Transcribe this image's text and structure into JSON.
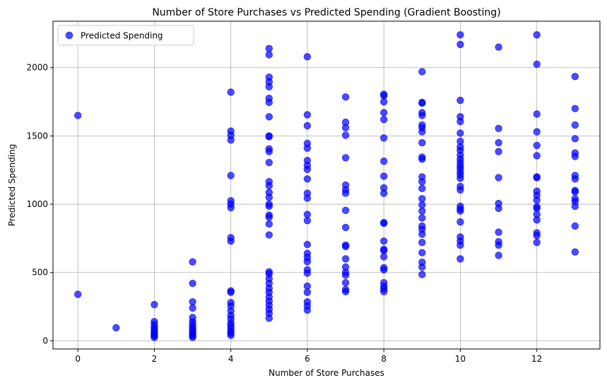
{
  "chart_data": {
    "type": "scatter",
    "title": "Number of Store Purchases vs Predicted Spending (Gradient Boosting)",
    "xlabel": "Number of Store Purchases",
    "ylabel": "Predicted Spending",
    "xlim": [
      -0.65,
      13.65
    ],
    "ylim": [
      -60,
      2340
    ],
    "xticks": [
      0,
      2,
      4,
      6,
      8,
      10,
      12
    ],
    "yticks": [
      0,
      500,
      1000,
      1500,
      2000
    ],
    "grid": true,
    "legend_position": "top-left",
    "series": [
      {
        "name": "Predicted Spending",
        "color": "#0000ff",
        "marker": "circle",
        "alpha": 0.7,
        "points": [
          [
            0,
            1650
          ],
          [
            0,
            340
          ],
          [
            1,
            95
          ],
          [
            2,
            265
          ],
          [
            2,
            140
          ],
          [
            2,
            120
          ],
          [
            2,
            100
          ],
          [
            2,
            85
          ],
          [
            2,
            70
          ],
          [
            2,
            55
          ],
          [
            2,
            45
          ],
          [
            2,
            35
          ],
          [
            2,
            25
          ],
          [
            3,
            578
          ],
          [
            3,
            420
          ],
          [
            3,
            285
          ],
          [
            3,
            240
          ],
          [
            3,
            170
          ],
          [
            3,
            140
          ],
          [
            3,
            120
          ],
          [
            3,
            100
          ],
          [
            3,
            85
          ],
          [
            3,
            70
          ],
          [
            3,
            55
          ],
          [
            3,
            45
          ],
          [
            3,
            35
          ],
          [
            3,
            25
          ],
          [
            4,
            1820
          ],
          [
            4,
            1535
          ],
          [
            4,
            1505
          ],
          [
            4,
            1470
          ],
          [
            4,
            1210
          ],
          [
            4,
            1025
          ],
          [
            4,
            1000
          ],
          [
            4,
            975
          ],
          [
            4,
            755
          ],
          [
            4,
            730
          ],
          [
            4,
            365
          ],
          [
            4,
            355
          ],
          [
            4,
            280
          ],
          [
            4,
            255
          ],
          [
            4,
            220
          ],
          [
            4,
            185
          ],
          [
            4,
            160
          ],
          [
            4,
            130
          ],
          [
            4,
            110
          ],
          [
            4,
            90
          ],
          [
            4,
            70
          ],
          [
            4,
            55
          ],
          [
            4,
            40
          ],
          [
            5,
            2140
          ],
          [
            5,
            2095
          ],
          [
            5,
            1930
          ],
          [
            5,
            1895
          ],
          [
            5,
            1860
          ],
          [
            5,
            1775
          ],
          [
            5,
            1745
          ],
          [
            5,
            1640
          ],
          [
            5,
            1500
          ],
          [
            5,
            1495
          ],
          [
            5,
            1405
          ],
          [
            5,
            1385
          ],
          [
            5,
            1305
          ],
          [
            5,
            1165
          ],
          [
            5,
            1135
          ],
          [
            5,
            1085
          ],
          [
            5,
            1050
          ],
          [
            5,
            1000
          ],
          [
            5,
            985
          ],
          [
            5,
            920
          ],
          [
            5,
            905
          ],
          [
            5,
            855
          ],
          [
            5,
            775
          ],
          [
            5,
            505
          ],
          [
            5,
            490
          ],
          [
            5,
            455
          ],
          [
            5,
            420
          ],
          [
            5,
            385
          ],
          [
            5,
            355
          ],
          [
            5,
            320
          ],
          [
            5,
            290
          ],
          [
            5,
            260
          ],
          [
            5,
            230
          ],
          [
            5,
            200
          ],
          [
            5,
            165
          ],
          [
            6,
            2080
          ],
          [
            6,
            1655
          ],
          [
            6,
            1575
          ],
          [
            6,
            1445
          ],
          [
            6,
            1410
          ],
          [
            6,
            1320
          ],
          [
            6,
            1285
          ],
          [
            6,
            1255
          ],
          [
            6,
            1185
          ],
          [
            6,
            1080
          ],
          [
            6,
            1045
          ],
          [
            6,
            925
          ],
          [
            6,
            880
          ],
          [
            6,
            705
          ],
          [
            6,
            640
          ],
          [
            6,
            610
          ],
          [
            6,
            580
          ],
          [
            6,
            520
          ],
          [
            6,
            495
          ],
          [
            6,
            400
          ],
          [
            6,
            355
          ],
          [
            6,
            285
          ],
          [
            6,
            255
          ],
          [
            6,
            225
          ],
          [
            7,
            1785
          ],
          [
            7,
            1600
          ],
          [
            7,
            1560
          ],
          [
            7,
            1505
          ],
          [
            7,
            1340
          ],
          [
            7,
            1140
          ],
          [
            7,
            1105
          ],
          [
            7,
            1080
          ],
          [
            7,
            955
          ],
          [
            7,
            830
          ],
          [
            7,
            700
          ],
          [
            7,
            690
          ],
          [
            7,
            600
          ],
          [
            7,
            540
          ],
          [
            7,
            500
          ],
          [
            7,
            480
          ],
          [
            7,
            425
          ],
          [
            7,
            375
          ],
          [
            7,
            360
          ],
          [
            8,
            1805
          ],
          [
            8,
            1795
          ],
          [
            8,
            1750
          ],
          [
            8,
            1670
          ],
          [
            8,
            1620
          ],
          [
            8,
            1485
          ],
          [
            8,
            1315
          ],
          [
            8,
            1205
          ],
          [
            8,
            1120
          ],
          [
            8,
            1080
          ],
          [
            8,
            865
          ],
          [
            8,
            860
          ],
          [
            8,
            730
          ],
          [
            8,
            670
          ],
          [
            8,
            660
          ],
          [
            8,
            615
          ],
          [
            8,
            535
          ],
          [
            8,
            520
          ],
          [
            8,
            425
          ],
          [
            8,
            400
          ],
          [
            8,
            380
          ],
          [
            8,
            360
          ],
          [
            9,
            1970
          ],
          [
            9,
            1745
          ],
          [
            9,
            1740
          ],
          [
            9,
            1670
          ],
          [
            9,
            1650
          ],
          [
            9,
            1580
          ],
          [
            9,
            1560
          ],
          [
            9,
            1530
          ],
          [
            9,
            1450
          ],
          [
            9,
            1345
          ],
          [
            9,
            1330
          ],
          [
            9,
            1200
          ],
          [
            9,
            1165
          ],
          [
            9,
            1115
          ],
          [
            9,
            1040
          ],
          [
            9,
            995
          ],
          [
            9,
            950
          ],
          [
            9,
            900
          ],
          [
            9,
            840
          ],
          [
            9,
            815
          ],
          [
            9,
            780
          ],
          [
            9,
            720
          ],
          [
            9,
            645
          ],
          [
            9,
            575
          ],
          [
            9,
            540
          ],
          [
            9,
            485
          ],
          [
            10,
            2240
          ],
          [
            10,
            2170
          ],
          [
            10,
            1760
          ],
          [
            10,
            1640
          ],
          [
            10,
            1605
          ],
          [
            10,
            1520
          ],
          [
            10,
            1460
          ],
          [
            10,
            1420
          ],
          [
            10,
            1395
          ],
          [
            10,
            1360
          ],
          [
            10,
            1330
          ],
          [
            10,
            1305
          ],
          [
            10,
            1280
          ],
          [
            10,
            1260
          ],
          [
            10,
            1235
          ],
          [
            10,
            1215
          ],
          [
            10,
            1190
          ],
          [
            10,
            1130
          ],
          [
            10,
            1105
          ],
          [
            10,
            985
          ],
          [
            10,
            965
          ],
          [
            10,
            950
          ],
          [
            10,
            870
          ],
          [
            10,
            760
          ],
          [
            10,
            730
          ],
          [
            10,
            700
          ],
          [
            10,
            600
          ],
          [
            11,
            2150
          ],
          [
            11,
            1555
          ],
          [
            11,
            1450
          ],
          [
            11,
            1385
          ],
          [
            11,
            1195
          ],
          [
            11,
            1005
          ],
          [
            11,
            970
          ],
          [
            11,
            795
          ],
          [
            11,
            725
          ],
          [
            11,
            700
          ],
          [
            11,
            625
          ],
          [
            12,
            2240
          ],
          [
            12,
            2025
          ],
          [
            12,
            1660
          ],
          [
            12,
            1530
          ],
          [
            12,
            1430
          ],
          [
            12,
            1355
          ],
          [
            12,
            1200
          ],
          [
            12,
            1195
          ],
          [
            12,
            1095
          ],
          [
            12,
            1065
          ],
          [
            12,
            1030
          ],
          [
            12,
            980
          ],
          [
            12,
            970
          ],
          [
            12,
            925
          ],
          [
            12,
            885
          ],
          [
            12,
            790
          ],
          [
            12,
            770
          ],
          [
            12,
            720
          ],
          [
            13,
            1935
          ],
          [
            13,
            1700
          ],
          [
            13,
            1580
          ],
          [
            13,
            1480
          ],
          [
            13,
            1375
          ],
          [
            13,
            1350
          ],
          [
            13,
            1210
          ],
          [
            13,
            1185
          ],
          [
            13,
            1100
          ],
          [
            13,
            1090
          ],
          [
            13,
            1040
          ],
          [
            13,
            1020
          ],
          [
            13,
            985
          ],
          [
            13,
            840
          ],
          [
            13,
            650
          ]
        ]
      }
    ]
  }
}
